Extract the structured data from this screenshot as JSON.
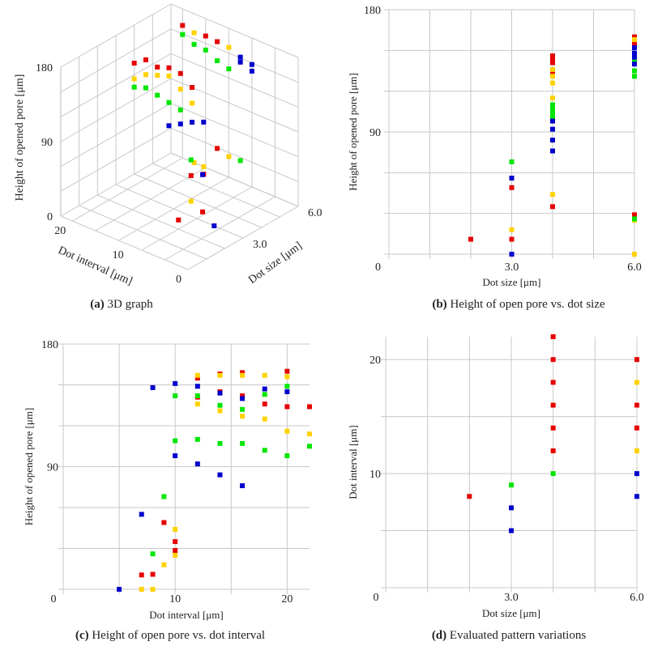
{
  "colors": {
    "red": "#e60000",
    "yellow": "#ffd200",
    "green": "#00e600",
    "blue": "#0000cc",
    "grid": "#c8c8c8"
  },
  "chart_data": [
    {
      "id": "a",
      "type": "scatter",
      "title": "3D graph",
      "caption_letter": "(a)",
      "xlabel": "Dot interval [μm]",
      "ylabel": "Dot size [μm]",
      "zlabel": "Height of opened pore [μm]",
      "x_ticks": [
        "0",
        "10",
        "20"
      ],
      "y_ticks": [
        "3.0",
        "6.0"
      ],
      "z_ticks": [
        "0",
        "90",
        "180"
      ],
      "xlim": [
        0,
        22
      ],
      "ylim": [
        0,
        6
      ],
      "zlim": [
        0,
        180
      ],
      "grid": true,
      "series": [
        {
          "color": "red",
          "points": [
            [
              6,
              20,
              160
            ],
            [
              6,
              16,
              159
            ],
            [
              6,
              14,
              158
            ],
            [
              6,
              14,
              29
            ],
            [
              4,
              22,
              134
            ],
            [
              4,
              20,
              144
            ],
            [
              4,
              18,
              141
            ],
            [
              4,
              16,
              146
            ],
            [
              4,
              14,
              145
            ],
            [
              4,
              12,
              134
            ],
            [
              4,
              10,
              35
            ],
            [
              3,
              9,
              49
            ],
            [
              3,
              7,
              11
            ],
            [
              2,
              8,
              11
            ]
          ]
        },
        {
          "color": "yellow",
          "points": [
            [
              6,
              18,
              157
            ],
            [
              6,
              12,
              157
            ],
            [
              6,
              12,
              25
            ],
            [
              6,
              18,
              0
            ],
            [
              4,
              22,
              115
            ],
            [
              4,
              20,
              126
            ],
            [
              4,
              18,
              131
            ],
            [
              4,
              16,
              136
            ],
            [
              4,
              14,
              126
            ],
            [
              4,
              12,
              115
            ],
            [
              4,
              10,
              44
            ],
            [
              3,
              9,
              18
            ]
          ]
        },
        {
          "color": "green",
          "points": [
            [
              6,
              20,
              149
            ],
            [
              6,
              18,
              143
            ],
            [
              6,
              16,
              142
            ],
            [
              6,
              14,
              135
            ],
            [
              6,
              12,
              131
            ],
            [
              6,
              10,
              26
            ],
            [
              4,
              22,
              105
            ],
            [
              4,
              20,
              110
            ],
            [
              4,
              18,
              107
            ],
            [
              4,
              16,
              104
            ],
            [
              4,
              14,
              101
            ],
            [
              3,
              9,
              68
            ]
          ]
        },
        {
          "color": "blue",
          "points": [
            [
              6,
              10,
              151
            ],
            [
              6,
              8,
              148
            ],
            [
              6,
              8,
              140
            ],
            [
              6,
              10,
              145
            ],
            [
              4,
              16,
              76
            ],
            [
              4,
              14,
              84
            ],
            [
              4,
              12,
              92
            ],
            [
              4,
              10,
              98
            ],
            [
              3,
              7,
              56
            ],
            [
              3,
              5,
              0
            ]
          ]
        }
      ]
    },
    {
      "id": "b",
      "type": "scatter",
      "title": "Height of open pore vs. dot size",
      "caption_letter": "(b)",
      "xlabel": "Dot size [μm]",
      "ylabel": "Height of opened pore [μm]",
      "xlim": [
        0,
        6
      ],
      "ylim": [
        0,
        180
      ],
      "x_ticks": [
        {
          "v": 3,
          "label": "3.0"
        },
        {
          "v": 6,
          "label": "6.0"
        }
      ],
      "y_ticks": [
        {
          "v": 0,
          "label": "0"
        },
        {
          "v": 90,
          "label": "90"
        },
        {
          "v": 180,
          "label": "180"
        }
      ],
      "grid": true,
      "series": [
        {
          "color": "red",
          "points": [
            [
              2,
              11
            ],
            [
              3,
              11
            ],
            [
              3,
              49
            ],
            [
              4,
              35
            ],
            [
              4,
              134
            ],
            [
              4,
              141
            ],
            [
              4,
              144
            ],
            [
              4,
              146
            ],
            [
              6,
              29
            ],
            [
              6,
              155
            ],
            [
              6,
              160
            ]
          ]
        },
        {
          "color": "yellow",
          "points": [
            [
              3,
              18
            ],
            [
              4,
              44
            ],
            [
              4,
              115
            ],
            [
              4,
              126
            ],
            [
              4,
              131
            ],
            [
              4,
              136
            ],
            [
              6,
              0
            ],
            [
              6,
              25
            ],
            [
              6,
              158
            ]
          ]
        },
        {
          "color": "green",
          "points": [
            [
              3,
              68
            ],
            [
              4,
              101
            ],
            [
              4,
              104
            ],
            [
              4,
              107
            ],
            [
              4,
              110
            ],
            [
              6,
              26
            ],
            [
              6,
              131
            ],
            [
              6,
              135
            ],
            [
              6,
              142
            ]
          ]
        },
        {
          "color": "blue",
          "points": [
            [
              3,
              0
            ],
            [
              3,
              56
            ],
            [
              4,
              76
            ],
            [
              4,
              84
            ],
            [
              4,
              92
            ],
            [
              4,
              98
            ],
            [
              6,
              140
            ],
            [
              6,
              145
            ],
            [
              6,
              148
            ],
            [
              6,
              152
            ]
          ]
        }
      ]
    },
    {
      "id": "c",
      "type": "scatter",
      "title": "Height of open pore vs. dot interval",
      "caption_letter": "(c)",
      "xlabel": "Dot interval [μm]",
      "ylabel": "Height of opened pore [μm]",
      "xlim": [
        0,
        22
      ],
      "ylim": [
        0,
        180
      ],
      "x_ticks": [
        {
          "v": 0,
          "label": "0"
        },
        {
          "v": 10,
          "label": "10"
        },
        {
          "v": 20,
          "label": "20"
        }
      ],
      "y_ticks": [
        {
          "v": 90,
          "label": "90"
        },
        {
          "v": 180,
          "label": "180"
        }
      ],
      "grid": true,
      "series": [
        {
          "color": "red",
          "points": [
            [
              7,
              10.5
            ],
            [
              8,
              11
            ],
            [
              9,
              49
            ],
            [
              10,
              35
            ],
            [
              10,
              28.5
            ],
            [
              12,
              155
            ],
            [
              12,
              141
            ],
            [
              14,
              158
            ],
            [
              14,
              145
            ],
            [
              16,
              159
            ],
            [
              16,
              142
            ],
            [
              18,
              136
            ],
            [
              20,
              160
            ],
            [
              20,
              134
            ],
            [
              22,
              134
            ]
          ]
        },
        {
          "color": "yellow",
          "points": [
            [
              7,
              0
            ],
            [
              8,
              0
            ],
            [
              9,
              18
            ],
            [
              10,
              44
            ],
            [
              10,
              25
            ],
            [
              12,
              157
            ],
            [
              12,
              136
            ],
            [
              14,
              157
            ],
            [
              14,
              131
            ],
            [
              16,
              157
            ],
            [
              16,
              127
            ],
            [
              18,
              157
            ],
            [
              18,
              125
            ],
            [
              20,
              156
            ],
            [
              20,
              116
            ],
            [
              22,
              114
            ]
          ]
        },
        {
          "color": "green",
          "points": [
            [
              8,
              26
            ],
            [
              9,
              68
            ],
            [
              10,
              142
            ],
            [
              10,
              109
            ],
            [
              12,
              142
            ],
            [
              12,
              110
            ],
            [
              14,
              135
            ],
            [
              14,
              107
            ],
            [
              16,
              132
            ],
            [
              16,
              107
            ],
            [
              18,
              143
            ],
            [
              18,
              102
            ],
            [
              20,
              149
            ],
            [
              20,
              98
            ],
            [
              22,
              105
            ]
          ]
        },
        {
          "color": "blue",
          "points": [
            [
              5,
              0
            ],
            [
              7,
              55
            ],
            [
              8,
              148
            ],
            [
              10,
              151
            ],
            [
              10,
              98
            ],
            [
              12,
              149
            ],
            [
              12,
              92
            ],
            [
              14,
              144
            ],
            [
              14,
              84
            ],
            [
              16,
              140
            ],
            [
              16,
              76
            ],
            [
              18,
              147
            ],
            [
              20,
              145
            ]
          ]
        }
      ]
    },
    {
      "id": "d",
      "type": "scatter",
      "title": "Evaluated pattern variations",
      "caption_letter": "(d)",
      "xlabel": "Dot size [μm]",
      "ylabel": "Dot interval [μm]",
      "xlim": [
        0,
        6
      ],
      "ylim": [
        0,
        22
      ],
      "x_ticks": [
        {
          "v": 0,
          "label": "0"
        },
        {
          "v": 3,
          "label": "3.0"
        },
        {
          "v": 6,
          "label": "6.0"
        }
      ],
      "y_ticks": [
        {
          "v": 10,
          "label": "10"
        },
        {
          "v": 20,
          "label": "20"
        }
      ],
      "grid": true,
      "series": [
        {
          "color": "red",
          "points": [
            [
              2,
              8
            ],
            [
              4,
              12
            ],
            [
              4,
              14
            ],
            [
              4,
              16
            ],
            [
              4,
              18
            ],
            [
              4,
              20
            ],
            [
              4,
              22
            ],
            [
              6,
              14
            ],
            [
              6,
              16
            ],
            [
              6,
              20
            ]
          ]
        },
        {
          "color": "yellow",
          "points": [
            [
              6,
              12
            ],
            [
              6,
              18
            ]
          ]
        },
        {
          "color": "green",
          "points": [
            [
              3,
              9
            ],
            [
              4,
              10
            ]
          ]
        },
        {
          "color": "blue",
          "points": [
            [
              3,
              5
            ],
            [
              3,
              7
            ],
            [
              6,
              8
            ],
            [
              6,
              10
            ]
          ]
        }
      ]
    }
  ]
}
